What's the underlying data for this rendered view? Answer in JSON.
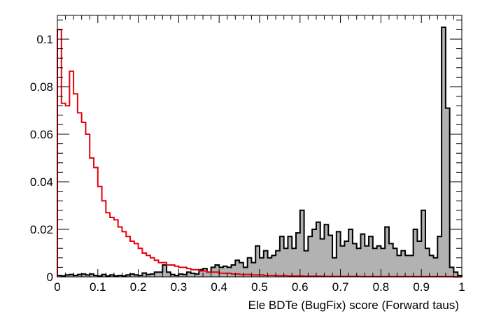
{
  "chart_data": {
    "type": "histogram",
    "title": "",
    "xlabel": "Ele BDTe (BugFix) score (Forward taus)",
    "ylabel": "",
    "xlim": [
      0,
      1
    ],
    "ylim": [
      0,
      0.11
    ],
    "grid": false,
    "legend": "none",
    "bin_width": 0.01,
    "x_ticks": [
      0,
      0.1,
      0.2,
      0.3,
      0.4,
      0.5,
      0.6,
      0.7,
      0.8,
      0.9,
      1
    ],
    "x_tick_labels": [
      "0",
      "0.1",
      "0.2",
      "0.3",
      "0.4",
      "0.5",
      "0.6",
      "0.7",
      "0.8",
      "0.9",
      "1"
    ],
    "y_ticks": [
      0,
      0.02,
      0.04,
      0.06,
      0.08,
      0.1
    ],
    "y_tick_labels": [
      "0",
      "0.02",
      "0.04",
      "0.06",
      "0.08",
      "0.1"
    ],
    "series": [
      {
        "style": "filled",
        "fill_color": "#b2b2b2",
        "line_color": "#000000",
        "values": [
          0.0006,
          0.0004,
          0.0008,
          0.001,
          0.0006,
          0.001,
          0.0012,
          0.0008,
          0.0012,
          0.0006,
          0.0004,
          0.001,
          0.0004,
          0.0008,
          0.0004,
          0.0006,
          0.0004,
          0.0008,
          0.0012,
          0.0008,
          0.0006,
          0.0016,
          0.001,
          0.0012,
          0.002,
          0.002,
          0.005,
          0.002,
          0.001,
          0.0006,
          0.0012,
          0.001,
          0.002,
          0.0015,
          0.0012,
          0.003,
          0.0035,
          0.002,
          0.004,
          0.005,
          0.004,
          0.0045,
          0.004,
          0.005,
          0.007,
          0.006,
          0.004,
          0.008,
          0.006,
          0.013,
          0.008,
          0.011,
          0.008,
          0.009,
          0.011,
          0.017,
          0.012,
          0.017,
          0.012,
          0.0185,
          0.028,
          0.011,
          0.017,
          0.02,
          0.023,
          0.016,
          0.022,
          0.0175,
          0.008,
          0.019,
          0.013,
          0.015,
          0.02,
          0.014,
          0.012,
          0.018,
          0.013,
          0.017,
          0.012,
          0.013,
          0.012,
          0.021,
          0.014,
          0.012,
          0.009,
          0.011,
          0.009,
          0.009,
          0.02,
          0.015,
          0.028,
          0.012,
          0.009,
          0.008,
          0.017,
          0.105,
          0.071,
          0.004,
          0.002,
          0.0006
        ]
      },
      {
        "style": "line",
        "line_color": "#e8000b",
        "values": [
          0.104,
          0.073,
          0.072,
          0.0865,
          0.077,
          0.069,
          0.065,
          0.06,
          0.05,
          0.046,
          0.038,
          0.032,
          0.027,
          0.025,
          0.024,
          0.021,
          0.019,
          0.017,
          0.015,
          0.014,
          0.012,
          0.01,
          0.009,
          0.008,
          0.007,
          0.006,
          0.006,
          0.005,
          0.005,
          0.0045,
          0.004,
          0.004,
          0.0035,
          0.003,
          0.003,
          0.0025,
          0.0025,
          0.002,
          0.002,
          0.002,
          0.0015,
          0.0015,
          0.0015,
          0.0012,
          0.0012,
          0.001,
          0.001,
          0.001,
          0.0008,
          0.0008,
          0.0008,
          0.0006,
          0.0006,
          0.0006,
          0.0005,
          0.0005,
          0.0005,
          0.0004,
          0.0004,
          0.0004,
          0.0004,
          0.0003,
          0.0003,
          0.0003,
          0.0003,
          0.0003,
          0.0002,
          0.0002,
          0.0002,
          0.0002,
          0.0002,
          0.0002,
          0.0002,
          0.0002,
          0.0002,
          0.0001,
          0.0001,
          0.0001,
          0.0001,
          0.0001,
          0.0001,
          0.0001,
          0.0001,
          0.0001,
          0.0001,
          0.0001,
          0.0001,
          0.0001,
          0.0001,
          0.0001,
          0.0001,
          0.0001,
          0.0001,
          0.0001,
          0.0001,
          0.0001,
          0.0001,
          0.0001,
          0.0,
          0.0
        ]
      }
    ]
  }
}
